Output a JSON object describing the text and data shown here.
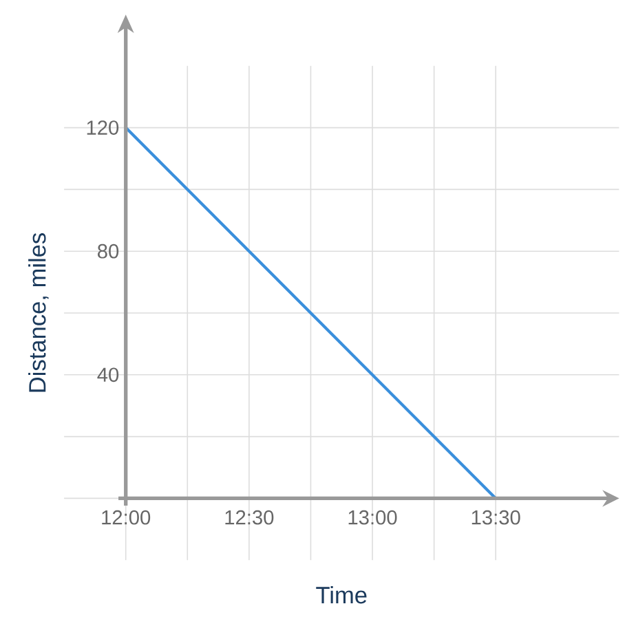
{
  "chart_data": {
    "type": "line",
    "xlabel": "Time",
    "ylabel": "Distance, miles",
    "x": [
      12,
      13.5
    ],
    "series": [
      {
        "color": "#3a8fdc",
        "values": [
          120,
          0
        ]
      }
    ],
    "xlim": [
      11.75,
      14
    ],
    "ylim": [
      -20,
      140
    ],
    "xticks": [
      {
        "value": 12,
        "label": "12:00"
      },
      {
        "value": 12.5,
        "label": "12:30"
      },
      {
        "value": 13,
        "label": "13:00"
      },
      {
        "value": 13.5,
        "label": "13:30"
      }
    ],
    "yticks": [
      {
        "value": 0,
        "label": null
      },
      40,
      80,
      120
    ],
    "grid": true
  }
}
